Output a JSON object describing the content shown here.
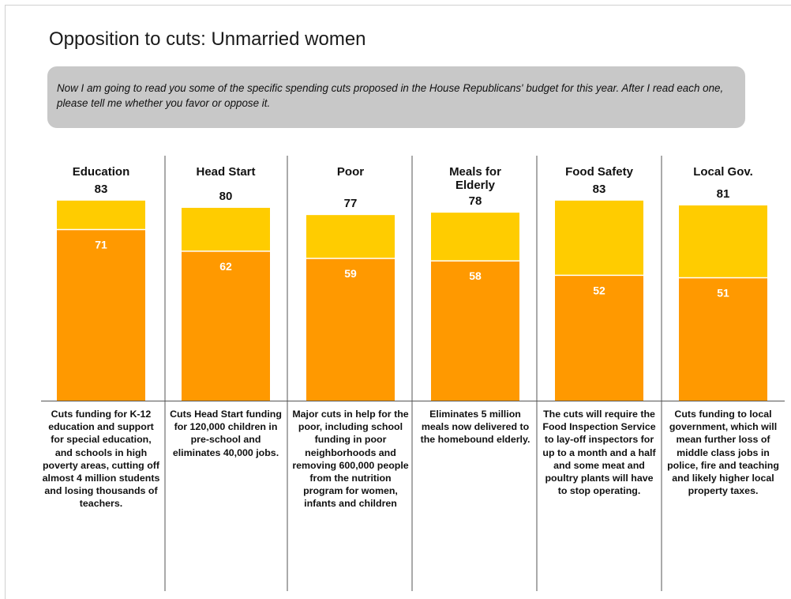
{
  "title": "Opposition to cuts: Unmarried women",
  "question": "Now I am going to read you some of the specific spending cuts proposed in the House Republicans' budget for this year.  After I read each one, please tell me whether you favor or oppose it.",
  "colors": {
    "inner_bar": "#ff9900",
    "outer_bar": "#ffcc00",
    "divider": "#555555"
  },
  "chart_data": {
    "type": "bar",
    "stacked": true,
    "categories": [
      "Education",
      "Head Start",
      "Poor",
      "Meals for Elderly",
      "Food Safety",
      "Local Gov."
    ],
    "category_lines": [
      [
        "Education"
      ],
      [
        "Head Start"
      ],
      [
        "Poor"
      ],
      [
        "Meals for",
        "Elderly"
      ],
      [
        "Food Safety"
      ],
      [
        "Local Gov."
      ]
    ],
    "series": [
      {
        "values": [
          71,
          62,
          59,
          58,
          52,
          51
        ],
        "labels": [
          "71",
          "62",
          "59",
          "58",
          "52",
          "51"
        ]
      },
      {
        "values": [
          12,
          18,
          18,
          20,
          31,
          30
        ]
      }
    ],
    "totals": [
      83,
      80,
      77,
      78,
      83,
      81
    ],
    "total_labels": [
      "83",
      "80",
      "77",
      "78",
      "83",
      "81"
    ],
    "ylim": [
      0,
      100
    ],
    "grid": false,
    "legend": "none"
  },
  "descriptions": [
    "Cuts funding for K-12 education and support for special education, and schools in high poverty areas, cutting off almost 4 million students and losing thousands of teachers.",
    "Cuts Head Start funding for 120,000 children in pre-school and eliminates 40,000 jobs.",
    "Major cuts in help for the poor, including school funding in poor neighborhoods and removing 600,000 people from the nutrition program for women, infants and children",
    "Eliminates 5 million meals now delivered to the homebound elderly.",
    "The cuts will require the Food Inspection Service to lay-off inspectors for up to a month and a half and some meat and poultry plants will have to stop operating.",
    "Cuts funding to local government, which will mean further loss of middle class jobs in police, fire and teaching and likely higher local property taxes."
  ]
}
